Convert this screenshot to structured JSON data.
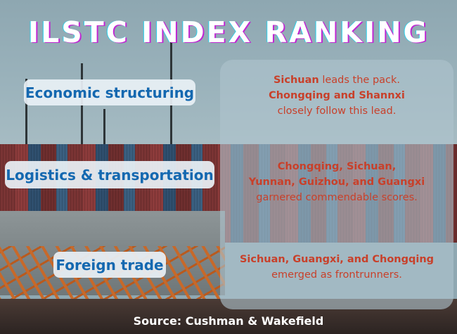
{
  "title": "ILSTC INDEX RANKING",
  "categories": [
    {
      "label": "Economic structuring",
      "highlight_1": "Sichuan",
      "text_1": " leads the pack.",
      "highlight_2": "Chongqing and Shannxi",
      "text_2": "closely follow this lead."
    },
    {
      "label": "Logistics & transportation",
      "highlight_1": "Chongqing, Sichuan,",
      "highlight_2": "Yunnan, Guizhou, and Guangxi",
      "text_2": "garnered commendable scores."
    },
    {
      "label": "Foreign trade",
      "highlight_1": "Sichuan, Guangxi, and Chongqing",
      "text_2": "emerged as frontrunners."
    }
  ],
  "source": "Source: Cushman & Wakefield",
  "colors": {
    "title": "#ffffff",
    "label": "#1468b0",
    "highlight": "#c8402a"
  }
}
